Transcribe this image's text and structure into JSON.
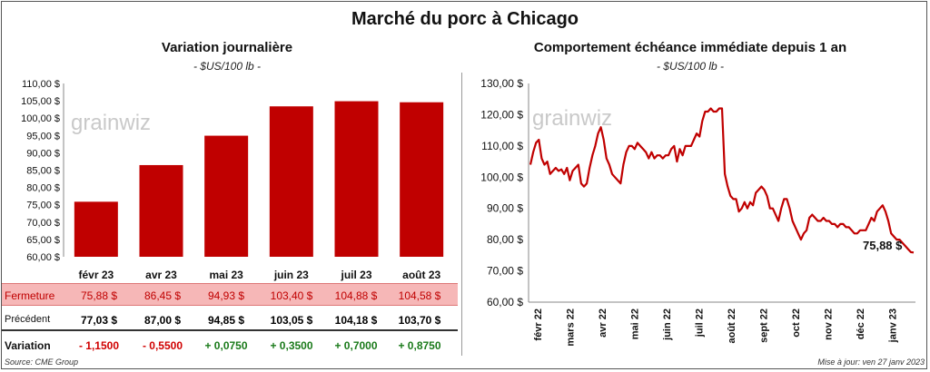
{
  "title": "Marché du porc à Chicago",
  "left_panel": {
    "title": "Variation journalière",
    "unit": "- $US/100 lb -"
  },
  "right_panel": {
    "title": "Comportement  échéance immédiate depuis 1 an",
    "unit": "- $US/100 lb -"
  },
  "watermark": "grainwiz",
  "colors": {
    "bar": "#c00000",
    "line": "#c00000",
    "close_row_bg": "#f6b7b7",
    "negative": "#d00000",
    "positive": "#1a7a1a"
  },
  "table": {
    "close_label": "Fermeture",
    "close_values": [
      "75,88  $",
      "86,45  $",
      "94,93  $",
      "103,40  $",
      "104,88  $",
      "104,58  $"
    ],
    "prev_label": "Précédent",
    "prev_values": [
      "77,03  $",
      "87,00  $",
      "94,85  $",
      "103,05  $",
      "104,18  $",
      "103,70  $"
    ],
    "var_label": "Variation",
    "var_values": [
      "- 1,1500",
      "- 0,5500",
      "+ 0,0750",
      "+ 0,3500",
      "+ 0,7000",
      "+ 0,8750"
    ],
    "var_signs": [
      "neg",
      "neg",
      "pos",
      "pos",
      "pos",
      "pos"
    ]
  },
  "footer": {
    "source": "Source: CME Group",
    "updated": "Mise à jour: ven 27 janv 2023"
  },
  "chart_data": [
    {
      "type": "bar",
      "categories": [
        "févr 23",
        "avr 23",
        "mai 23",
        "juin 23",
        "juil 23",
        "août 23"
      ],
      "values": [
        75.88,
        86.45,
        94.93,
        103.4,
        104.88,
        104.58
      ],
      "title": "Variation journalière",
      "ylabel": "$US/100 lb",
      "ylim": [
        60,
        110
      ],
      "yticks": [
        "60,00 $",
        "65,00 $",
        "70,00 $",
        "75,00 $",
        "80,00 $",
        "85,00 $",
        "90,00 $",
        "95,00 $",
        "100,00 $",
        "105,00 $",
        "110,00 $"
      ],
      "grid": false
    },
    {
      "type": "line",
      "title": "Comportement  échéance immédiate depuis 1 an",
      "ylabel": "$US/100 lb",
      "ylim": [
        60,
        130
      ],
      "yticks": [
        "60,00 $",
        "70,00 $",
        "80,00 $",
        "90,00 $",
        "100,00 $",
        "110,00 $",
        "120,00 $",
        "130,00 $"
      ],
      "xticks": [
        "févr 22",
        "mars 22",
        "avr 22",
        "mai 22",
        "juin 22",
        "juil 22",
        "août 22",
        "sept 22",
        "oct 22",
        "nov 22",
        "déc 22",
        "janv 23"
      ],
      "last_label": "75,88 $",
      "series": [
        {
          "values": [
            104,
            108,
            111,
            112,
            106,
            104,
            105,
            101,
            102,
            103,
            102,
            102.5,
            101,
            103,
            99,
            102,
            103,
            104,
            98,
            97,
            98,
            103,
            107,
            110,
            114,
            116,
            112,
            106,
            104,
            101,
            100,
            99,
            98,
            104,
            108,
            110,
            110,
            109,
            111,
            110,
            109,
            108,
            106,
            108,
            106,
            107,
            107,
            106,
            107,
            107,
            109,
            110,
            105,
            109,
            107,
            110,
            110,
            110,
            112,
            114,
            113,
            118,
            121,
            121,
            122,
            121,
            121,
            122,
            122,
            101,
            97,
            94,
            93,
            93,
            89,
            90,
            92,
            90,
            92,
            91,
            95,
            96,
            97,
            96,
            94,
            90,
            90,
            88,
            86,
            90,
            93,
            93,
            90,
            86,
            84,
            82,
            80,
            82,
            83,
            87,
            88,
            87,
            86,
            86,
            87,
            86,
            86,
            85,
            85,
            84,
            85,
            85,
            84,
            84,
            83,
            82,
            82,
            83,
            83,
            83,
            85,
            87,
            86,
            89,
            90,
            91,
            89,
            86,
            82,
            81,
            80,
            80,
            79,
            78,
            77,
            76,
            75.88
          ]
        }
      ],
      "grid": false
    }
  ]
}
